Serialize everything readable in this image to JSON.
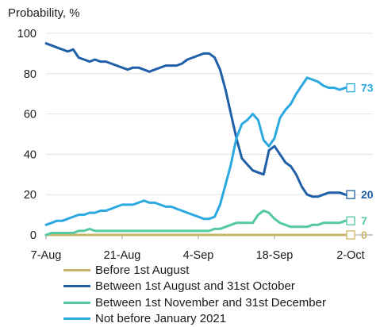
{
  "chart_data": {
    "type": "line",
    "ylabel": "Probability, %",
    "ylim": [
      0,
      100
    ],
    "yticks": [
      "0",
      "20",
      "40",
      "60",
      "80",
      "100"
    ],
    "xticks": [
      "7-Aug",
      "21-Aug",
      "4-Sep",
      "18-Sep",
      "2-Oct"
    ],
    "x_start": "7-Aug",
    "x_end": "2-Oct",
    "grid": true,
    "legend_position": "bottom",
    "series": [
      {
        "name": "Before 1st August",
        "color": "#c8b468",
        "end_label": "0",
        "values": [
          0,
          0,
          0,
          0,
          0,
          0,
          0,
          0,
          0,
          0,
          0,
          0,
          0,
          0,
          0,
          0,
          0,
          0,
          0,
          0,
          0,
          0,
          0,
          0,
          0,
          0,
          0,
          0,
          0,
          0,
          0,
          0,
          0,
          0,
          0,
          0,
          0,
          0,
          0,
          0,
          0,
          0,
          0,
          0,
          0,
          0,
          0,
          0,
          0,
          0,
          0,
          0,
          0,
          0,
          0,
          0,
          0
        ]
      },
      {
        "name": "Between 1st August and 31st October",
        "color": "#1f5fa8",
        "end_label": "20",
        "values": [
          95,
          94,
          93,
          92,
          91,
          92,
          88,
          87,
          86,
          87,
          86,
          86,
          85,
          84,
          83,
          82,
          83,
          83,
          82,
          81,
          82,
          83,
          84,
          84,
          84,
          85,
          87,
          88,
          89,
          90,
          90,
          88,
          82,
          72,
          60,
          48,
          38,
          35,
          32,
          31,
          30,
          42,
          44,
          40,
          36,
          34,
          30,
          24,
          20,
          19,
          19,
          20,
          21,
          21,
          21,
          20,
          20
        ]
      },
      {
        "name": "Between 1st November and 31st December",
        "color": "#52c9a2",
        "end_label": "7",
        "values": [
          0,
          1,
          1,
          1,
          1,
          1,
          2,
          2,
          3,
          2,
          2,
          2,
          2,
          2,
          2,
          2,
          2,
          2,
          2,
          2,
          2,
          2,
          2,
          2,
          2,
          2,
          2,
          2,
          2,
          2,
          2,
          3,
          3,
          4,
          5,
          6,
          6,
          6,
          6,
          10,
          12,
          11,
          8,
          6,
          5,
          4,
          4,
          4,
          4,
          5,
          5,
          6,
          6,
          6,
          6,
          7,
          7
        ]
      },
      {
        "name": "Not before January 2021",
        "color": "#2ba8e0",
        "end_label": "73",
        "values": [
          5,
          6,
          7,
          7,
          8,
          9,
          10,
          10,
          11,
          11,
          12,
          12,
          13,
          14,
          15,
          15,
          15,
          16,
          17,
          16,
          16,
          15,
          14,
          14,
          13,
          12,
          11,
          10,
          9,
          8,
          8,
          9,
          15,
          25,
          35,
          48,
          55,
          57,
          60,
          57,
          47,
          44,
          48,
          58,
          62,
          65,
          70,
          74,
          78,
          77,
          76,
          74,
          73,
          73,
          72,
          73,
          73
        ]
      }
    ]
  }
}
